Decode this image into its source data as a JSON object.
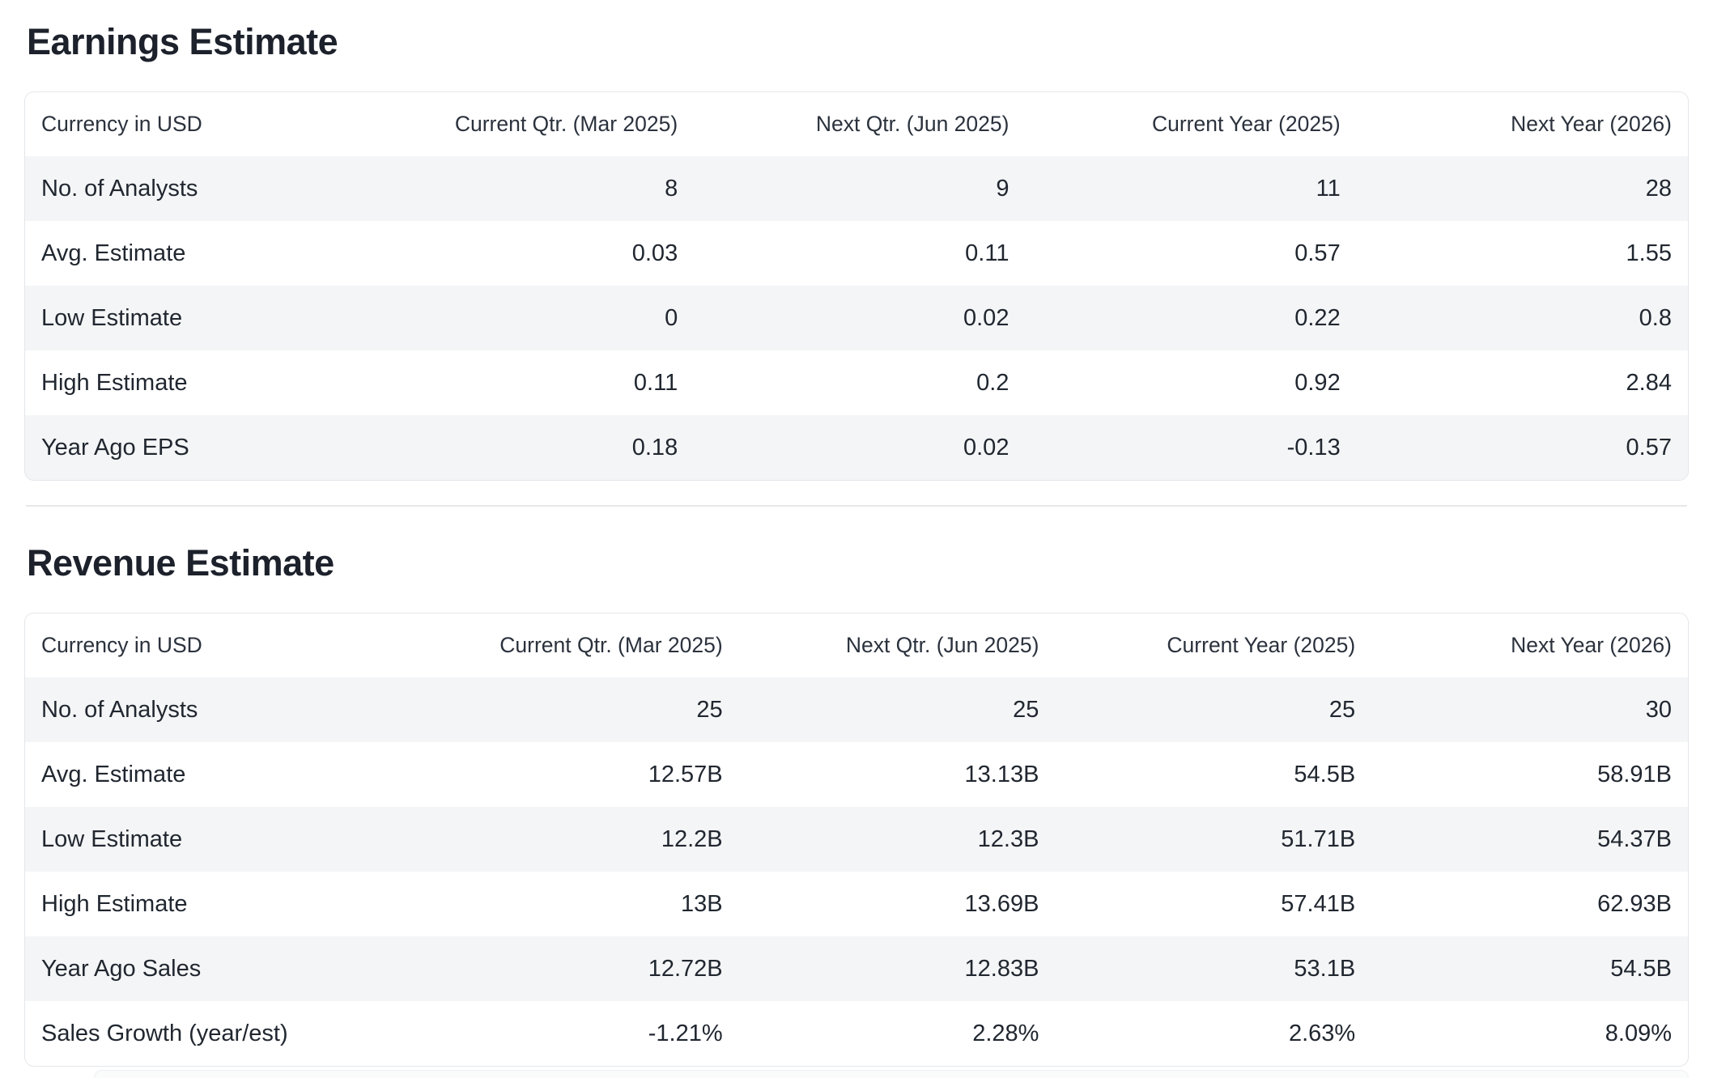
{
  "colors": {
    "heading_text": "#1c212b",
    "body_text": "#212730",
    "header_text": "#2b323d",
    "row_stripe": "#f4f5f6",
    "card_border": "#e3e6ea",
    "divider": "#e7e8ea",
    "background": "#ffffff"
  },
  "sections": [
    {
      "title": "Earnings Estimate",
      "columns": [
        "Currency in USD",
        "Current Qtr. (Mar 2025)",
        "Next Qtr. (Jun 2025)",
        "Current Year (2025)",
        "Next Year (2026)"
      ],
      "rows": [
        {
          "label": "No. of Analysts",
          "values": [
            "8",
            "9",
            "11",
            "28"
          ]
        },
        {
          "label": "Avg. Estimate",
          "values": [
            "0.03",
            "0.11",
            "0.57",
            "1.55"
          ]
        },
        {
          "label": "Low Estimate",
          "values": [
            "0",
            "0.02",
            "0.22",
            "0.8"
          ]
        },
        {
          "label": "High Estimate",
          "values": [
            "0.11",
            "0.2",
            "0.92",
            "2.84"
          ]
        },
        {
          "label": "Year Ago EPS",
          "values": [
            "0.18",
            "0.02",
            "-0.13",
            "0.57"
          ]
        }
      ]
    },
    {
      "title": "Revenue Estimate",
      "columns": [
        "Currency in USD",
        "Current Qtr. (Mar 2025)",
        "Next Qtr. (Jun 2025)",
        "Current Year (2025)",
        "Next Year (2026)"
      ],
      "rows": [
        {
          "label": "No. of Analysts",
          "values": [
            "25",
            "25",
            "25",
            "30"
          ]
        },
        {
          "label": "Avg. Estimate",
          "values": [
            "12.57B",
            "13.13B",
            "54.5B",
            "58.91B"
          ]
        },
        {
          "label": "Low Estimate",
          "values": [
            "12.2B",
            "12.3B",
            "51.71B",
            "54.37B"
          ]
        },
        {
          "label": "High Estimate",
          "values": [
            "13B",
            "13.69B",
            "57.41B",
            "62.93B"
          ]
        },
        {
          "label": "Year Ago Sales",
          "values": [
            "12.72B",
            "12.83B",
            "53.1B",
            "54.5B"
          ]
        },
        {
          "label": "Sales Growth (year/est)",
          "values": [
            "-1.21%",
            "2.28%",
            "2.63%",
            "8.09%"
          ]
        }
      ]
    }
  ]
}
